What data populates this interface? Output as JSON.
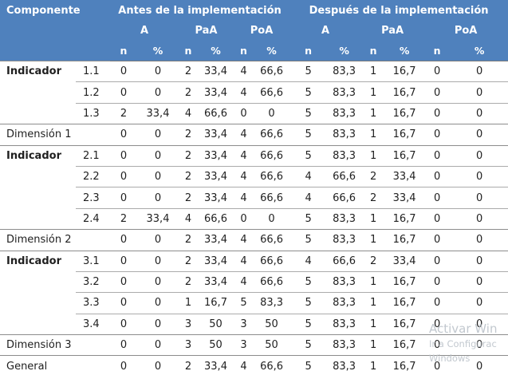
{
  "colors": {
    "header_bg": "#4f81bd",
    "header_text": "#ffffff",
    "section_border": "#8c8c8c",
    "sub_border": "#ababab",
    "bottom_border": "#a9c0de",
    "watermark_text": "#bcc3ca"
  },
  "header": {
    "componente": "Componente",
    "antes": "Antes de la implementación",
    "despues": "Después de la implementación",
    "subgroups": [
      "A",
      "PaA",
      "PoA"
    ],
    "n_label": "n",
    "pct_label": "%"
  },
  "chart_data": {
    "type": "table",
    "column_groups": {
      "before": "Antes de la implementación",
      "after": "Después de la implementación",
      "categories": [
        "A",
        "PaA",
        "PoA"
      ],
      "measures": [
        "n",
        "%"
      ]
    },
    "rows": [
      {
        "label": "Indicador",
        "id": "1.1",
        "kind": "group-start",
        "values": [
          "0",
          "0",
          "2",
          "33,4",
          "4",
          "66,6",
          "5",
          "83,3",
          "1",
          "16,7",
          "0",
          "0"
        ]
      },
      {
        "label": "",
        "id": "1.2",
        "kind": "sub",
        "values": [
          "0",
          "0",
          "2",
          "33,4",
          "4",
          "66,6",
          "5",
          "83,3",
          "1",
          "16,7",
          "0",
          "0"
        ]
      },
      {
        "label": "",
        "id": "1.3",
        "kind": "sub",
        "values": [
          "2",
          "33,4",
          "4",
          "66,6",
          "0",
          "0",
          "5",
          "83,3",
          "1",
          "16,7",
          "0",
          "0"
        ]
      },
      {
        "label": "Dimensión 1",
        "id": "",
        "kind": "section",
        "values": [
          "0",
          "0",
          "2",
          "33,4",
          "4",
          "66,6",
          "5",
          "83,3",
          "1",
          "16,7",
          "0",
          "0"
        ]
      },
      {
        "label": "Indicador",
        "id": "2.1",
        "kind": "group-start",
        "values": [
          "0",
          "0",
          "2",
          "33,4",
          "4",
          "66,6",
          "5",
          "83,3",
          "1",
          "16,7",
          "0",
          "0"
        ]
      },
      {
        "label": "",
        "id": "2.2",
        "kind": "sub",
        "values": [
          "0",
          "0",
          "2",
          "33,4",
          "4",
          "66,6",
          "4",
          "66,6",
          "2",
          "33,4",
          "0",
          "0"
        ]
      },
      {
        "label": "",
        "id": "2.3",
        "kind": "sub",
        "values": [
          "0",
          "0",
          "2",
          "33,4",
          "4",
          "66,6",
          "4",
          "66,6",
          "2",
          "33,4",
          "0",
          "0"
        ]
      },
      {
        "label": "",
        "id": "2.4",
        "kind": "sub",
        "values": [
          "2",
          "33,4",
          "4",
          "66,6",
          "0",
          "0",
          "5",
          "83,3",
          "1",
          "16,7",
          "0",
          "0"
        ]
      },
      {
        "label": "Dimensión 2",
        "id": "",
        "kind": "section",
        "values": [
          "0",
          "0",
          "2",
          "33,4",
          "4",
          "66,6",
          "5",
          "83,3",
          "1",
          "16,7",
          "0",
          "0"
        ]
      },
      {
        "label": "Indicador",
        "id": "3.1",
        "kind": "group-start",
        "values": [
          "0",
          "0",
          "2",
          "33,4",
          "4",
          "66,6",
          "4",
          "66,6",
          "2",
          "33,4",
          "0",
          "0"
        ]
      },
      {
        "label": "",
        "id": "3.2",
        "kind": "sub",
        "values": [
          "0",
          "0",
          "2",
          "33,4",
          "4",
          "66,6",
          "5",
          "83,3",
          "1",
          "16,7",
          "0",
          "0"
        ]
      },
      {
        "label": "",
        "id": "3.3",
        "kind": "sub",
        "values": [
          "0",
          "0",
          "1",
          "16,7",
          "5",
          "83,3",
          "5",
          "83,3",
          "1",
          "16,7",
          "0",
          "0"
        ]
      },
      {
        "label": "",
        "id": "3.4",
        "kind": "sub",
        "values": [
          "0",
          "0",
          "3",
          "50",
          "3",
          "50",
          "5",
          "83,3",
          "1",
          "16,7",
          "0",
          "0"
        ]
      },
      {
        "label": "Dimensión 3",
        "id": "",
        "kind": "section",
        "values": [
          "0",
          "0",
          "3",
          "50",
          "3",
          "50",
          "5",
          "83,3",
          "1",
          "16,7",
          "0",
          "0"
        ]
      },
      {
        "label": "General",
        "id": "",
        "kind": "section",
        "values": [
          "0",
          "0",
          "2",
          "33,4",
          "4",
          "66,6",
          "5",
          "83,3",
          "1",
          "16,7",
          "0",
          "0"
        ]
      }
    ]
  },
  "watermark": {
    "line1": "Activar Win",
    "line2": "Ir a Configurac",
    "line3": "Windows"
  }
}
